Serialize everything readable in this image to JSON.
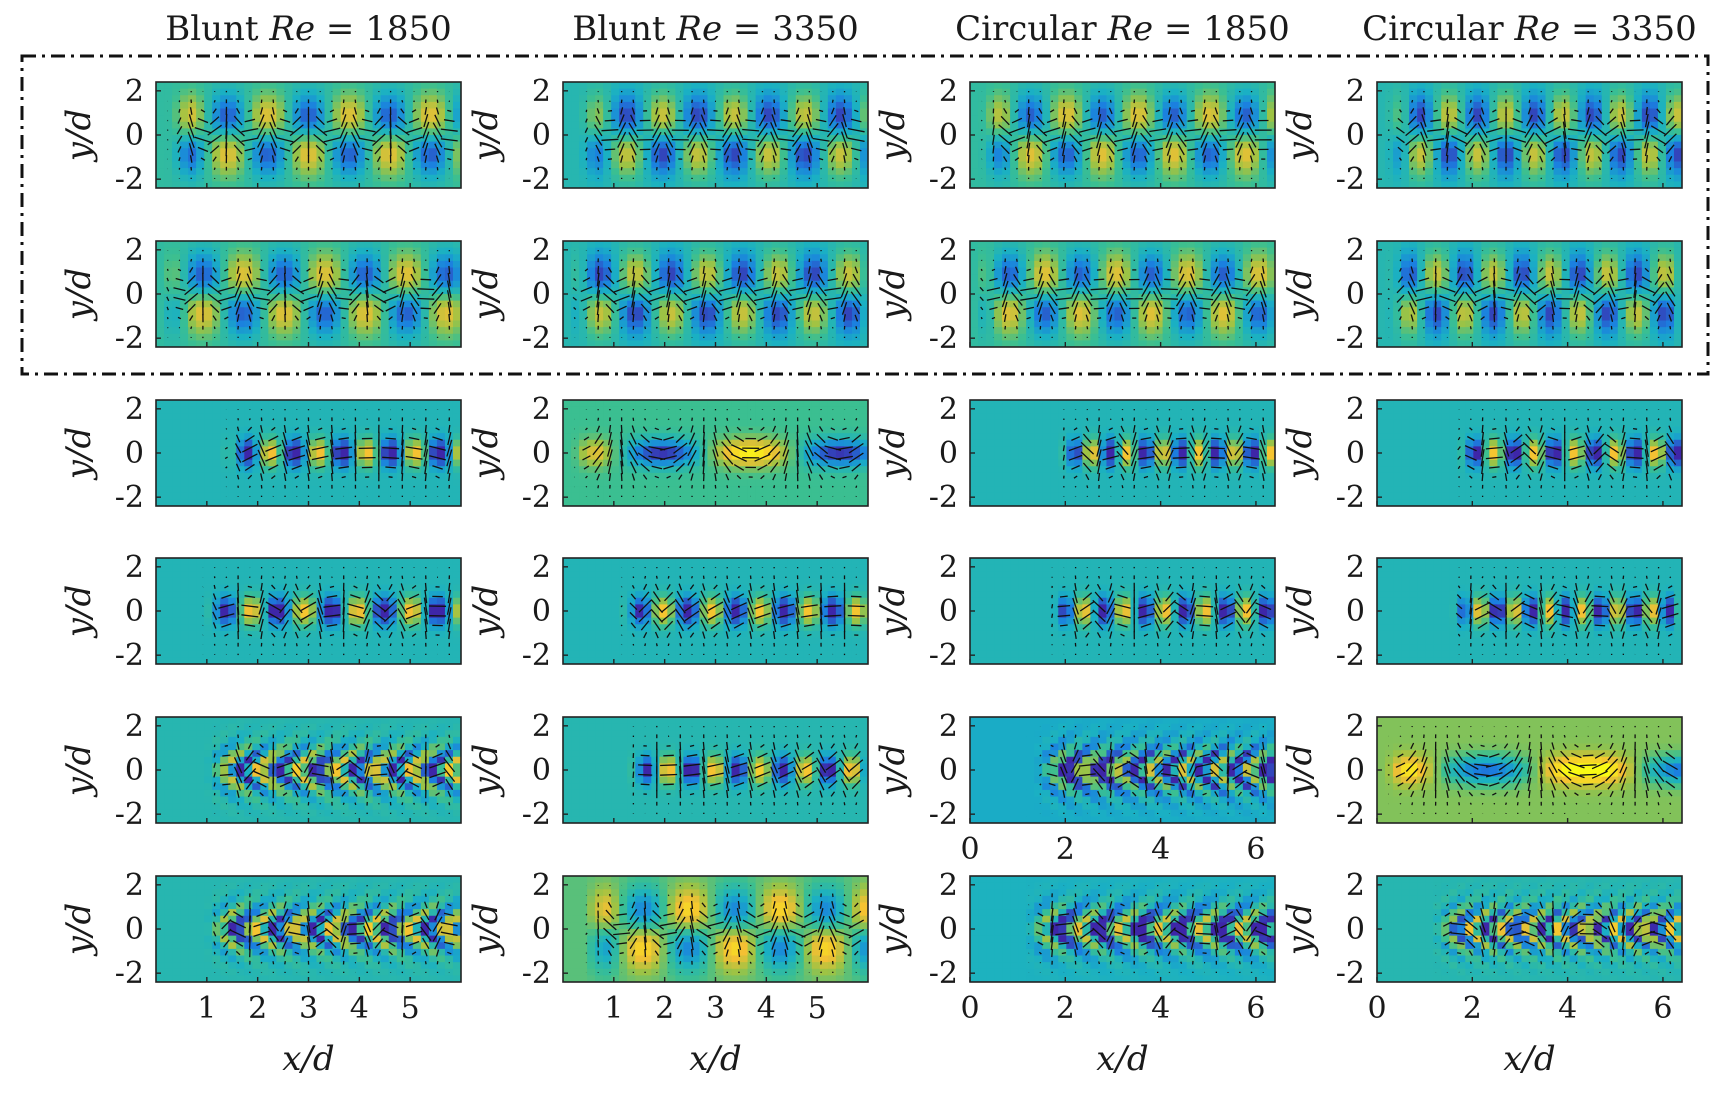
{
  "chart_data": {
    "type": "heatmap",
    "description_free": true,
    "grid": {
      "rows": 6,
      "cols": 4
    },
    "highlight_box": {
      "rows": [
        0,
        1
      ],
      "style": "dash-dot"
    },
    "colormap": [
      "#3e26a8",
      "#1b7fe0",
      "#1ab0c4",
      "#3bbf91",
      "#9ec344",
      "#f5c033",
      "#f9fb15"
    ],
    "quiver_color": "#111111",
    "columns": [
      {
        "title_prefix": "Blunt",
        "title_var": "Re",
        "title_value": "= 1850",
        "xlim": [
          0,
          6
        ],
        "xticks": [
          1,
          2,
          3,
          4,
          5
        ],
        "xtick_labels": [
          "1",
          "2",
          "3",
          "4",
          "5"
        ],
        "bottom_xlabel": "x/d"
      },
      {
        "title_prefix": "Blunt",
        "title_var": "Re",
        "title_value": "= 3350",
        "xlim": [
          0,
          6
        ],
        "xticks": [
          1,
          2,
          3,
          4,
          5
        ],
        "xtick_labels": [
          "1",
          "2",
          "3",
          "4",
          "5"
        ],
        "bottom_xlabel": "x/d"
      },
      {
        "title_prefix": "Circular",
        "title_var": "Re",
        "title_value": "= 1850",
        "xlim": [
          0,
          6.4
        ],
        "xticks": [
          0,
          2,
          4,
          6
        ],
        "xtick_labels": [
          "0",
          "2",
          "4",
          "6"
        ],
        "bottom_xlabel": "x/d",
        "extra_xticks_after_row": 4
      },
      {
        "title_prefix": "Circular",
        "title_var": "Re",
        "title_value": "= 3350",
        "xlim": [
          0,
          6.4
        ],
        "xticks": [
          0,
          2,
          4,
          6
        ],
        "xtick_labels": [
          "0",
          "2",
          "4",
          "6"
        ],
        "bottom_xlabel": "x/d"
      }
    ],
    "ylabel": "y/d",
    "ylim": [
      -2.4,
      2.4
    ],
    "yticks": [
      2,
      0,
      -2
    ],
    "ytick_labels": [
      "2",
      "0",
      "-2"
    ],
    "panels": [
      {
        "row": 0,
        "col": 0,
        "pattern": "antisym",
        "wavelength": 1.6,
        "start": 0.2,
        "phase": 0.0,
        "bg": 0.45
      },
      {
        "row": 0,
        "col": 1,
        "pattern": "antisym",
        "wavelength": 1.4,
        "start": 0.3,
        "phase": 0.4,
        "bg": 0.4
      },
      {
        "row": 0,
        "col": 2,
        "pattern": "antisym",
        "wavelength": 1.5,
        "start": 0.2,
        "phase": 0.2,
        "bg": 0.45
      },
      {
        "row": 0,
        "col": 3,
        "pattern": "antisym",
        "wavelength": 1.2,
        "start": 0.2,
        "phase": 1.0,
        "bg": 0.4
      },
      {
        "row": 1,
        "col": 0,
        "pattern": "antisym",
        "wavelength": 1.6,
        "start": 0.1,
        "phase": 1.5,
        "bg": 0.45
      },
      {
        "row": 1,
        "col": 1,
        "pattern": "antisym",
        "wavelength": 1.4,
        "start": 0.1,
        "phase": 1.9,
        "bg": 0.4
      },
      {
        "row": 1,
        "col": 2,
        "pattern": "antisym",
        "wavelength": 1.5,
        "start": 0.1,
        "phase": 1.7,
        "bg": 0.45
      },
      {
        "row": 1,
        "col": 3,
        "pattern": "antisym",
        "wavelength": 1.2,
        "start": 0.2,
        "phase": 2.4,
        "bg": 0.4
      },
      {
        "row": 2,
        "col": 0,
        "pattern": "sym",
        "wavelength": 0.95,
        "start": 1.3,
        "phase": 0.0,
        "bg": 0.38
      },
      {
        "row": 2,
        "col": 1,
        "pattern": "sym",
        "wavelength": 3.5,
        "start": 0.2,
        "phase": 0.0,
        "bg": 0.5
      },
      {
        "row": 2,
        "col": 2,
        "pattern": "sym",
        "wavelength": 0.75,
        "start": 1.8,
        "phase": 0.0,
        "bg": 0.38
      },
      {
        "row": 2,
        "col": 3,
        "pattern": "sym",
        "wavelength": 0.85,
        "start": 1.6,
        "phase": 0.0,
        "bg": 0.38
      },
      {
        "row": 3,
        "col": 0,
        "pattern": "sym",
        "wavelength": 1.05,
        "start": 0.9,
        "phase": 0.5,
        "bg": 0.38
      },
      {
        "row": 3,
        "col": 1,
        "pattern": "sym",
        "wavelength": 0.95,
        "start": 1.1,
        "phase": 0.5,
        "bg": 0.38
      },
      {
        "row": 3,
        "col": 2,
        "pattern": "sym",
        "wavelength": 0.85,
        "start": 1.6,
        "phase": 0.5,
        "bg": 0.38
      },
      {
        "row": 3,
        "col": 3,
        "pattern": "sym",
        "wavelength": 0.72,
        "start": 1.5,
        "phase": 0.5,
        "bg": 0.38
      },
      {
        "row": 4,
        "col": 0,
        "pattern": "chevron",
        "wavelength": 0.75,
        "start": 1.0,
        "phase": 0.0,
        "bg": 0.4
      },
      {
        "row": 4,
        "col": 1,
        "pattern": "sym",
        "wavelength": 0.9,
        "start": 1.2,
        "phase": 0.2,
        "bg": 0.4
      },
      {
        "row": 4,
        "col": 2,
        "pattern": "chevron",
        "wavelength": 0.7,
        "start": 1.4,
        "phase": 0.0,
        "bg": 0.32
      },
      {
        "row": 4,
        "col": 3,
        "pattern": "sym",
        "wavelength": 4.2,
        "start": 0.2,
        "phase": 0.0,
        "bg": 0.62
      },
      {
        "row": 5,
        "col": 0,
        "pattern": "chevron",
        "wavelength": 0.75,
        "start": 1.0,
        "phase": 0.7,
        "bg": 0.4
      },
      {
        "row": 5,
        "col": 1,
        "pattern": "antisym",
        "wavelength": 1.8,
        "start": 0.4,
        "phase": 0.6,
        "bg": 0.55
      },
      {
        "row": 5,
        "col": 2,
        "pattern": "chevron",
        "wavelength": 0.85,
        "start": 1.2,
        "phase": 0.7,
        "bg": 0.35
      },
      {
        "row": 5,
        "col": 3,
        "pattern": "chevron",
        "wavelength": 0.6,
        "start": 1.2,
        "phase": 0.7,
        "bg": 0.4
      }
    ]
  }
}
